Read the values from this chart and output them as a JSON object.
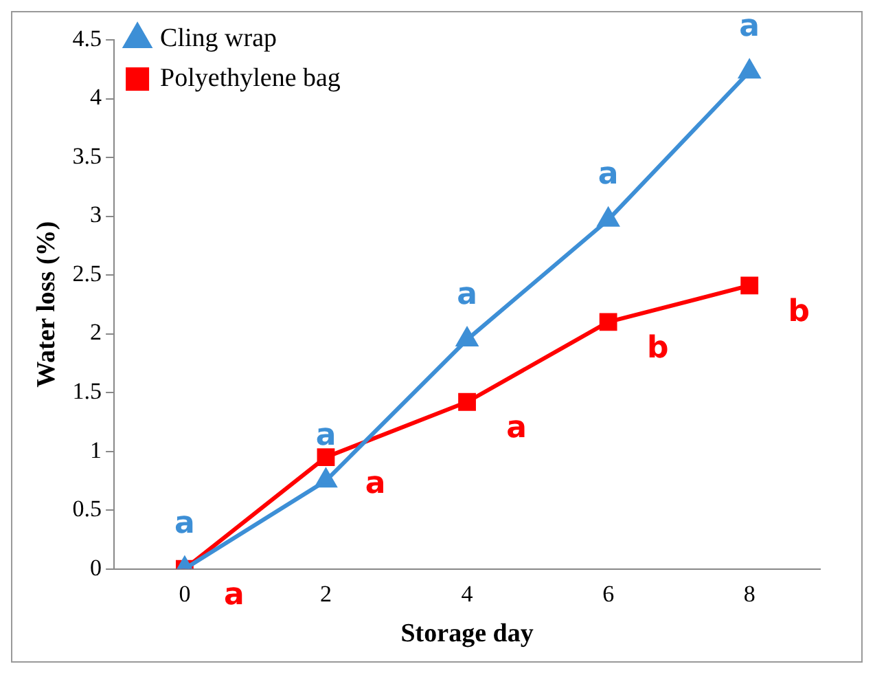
{
  "chart_data": {
    "type": "line",
    "xlabel": "Storage day",
    "ylabel": "Water loss (%)",
    "categories": [
      "0",
      "2",
      "4",
      "6",
      "8"
    ],
    "series": [
      {
        "name": "Cling wrap",
        "color": "#3d8fd6",
        "marker": "triangle",
        "values": [
          0,
          0.75,
          1.95,
          2.97,
          4.23
        ]
      },
      {
        "name": "Polyethylene bag",
        "color": "#ff0000",
        "marker": "square",
        "values": [
          0,
          0.95,
          1.42,
          2.1,
          2.41
        ]
      }
    ],
    "ylim": [
      0,
      4.5
    ],
    "yticks": [
      0,
      0.5,
      1,
      1.5,
      2,
      2.5,
      3,
      3.5,
      4,
      4.5
    ],
    "grid": false,
    "legend": "top left",
    "annotations": [
      {
        "text": "a",
        "x": "0",
        "y": 0
      },
      {
        "text": "a",
        "x": "2",
        "y": 0.75
      },
      {
        "text": "a",
        "x": "4",
        "y": 1.95
      },
      {
        "text": "a",
        "x": "6",
        "y": 2.97
      },
      {
        "text": "a",
        "x": "8",
        "y": 4.23
      },
      {
        "text": "a",
        "x": "0",
        "y": 0
      },
      {
        "text": "a",
        "x": "2",
        "y": 0.95
      },
      {
        "text": "a",
        "x": "4",
        "y": 1.42
      },
      {
        "text": "b",
        "x": "6",
        "y": 2.1
      },
      {
        "text": "b",
        "x": "8",
        "y": 2.41
      }
    ]
  }
}
